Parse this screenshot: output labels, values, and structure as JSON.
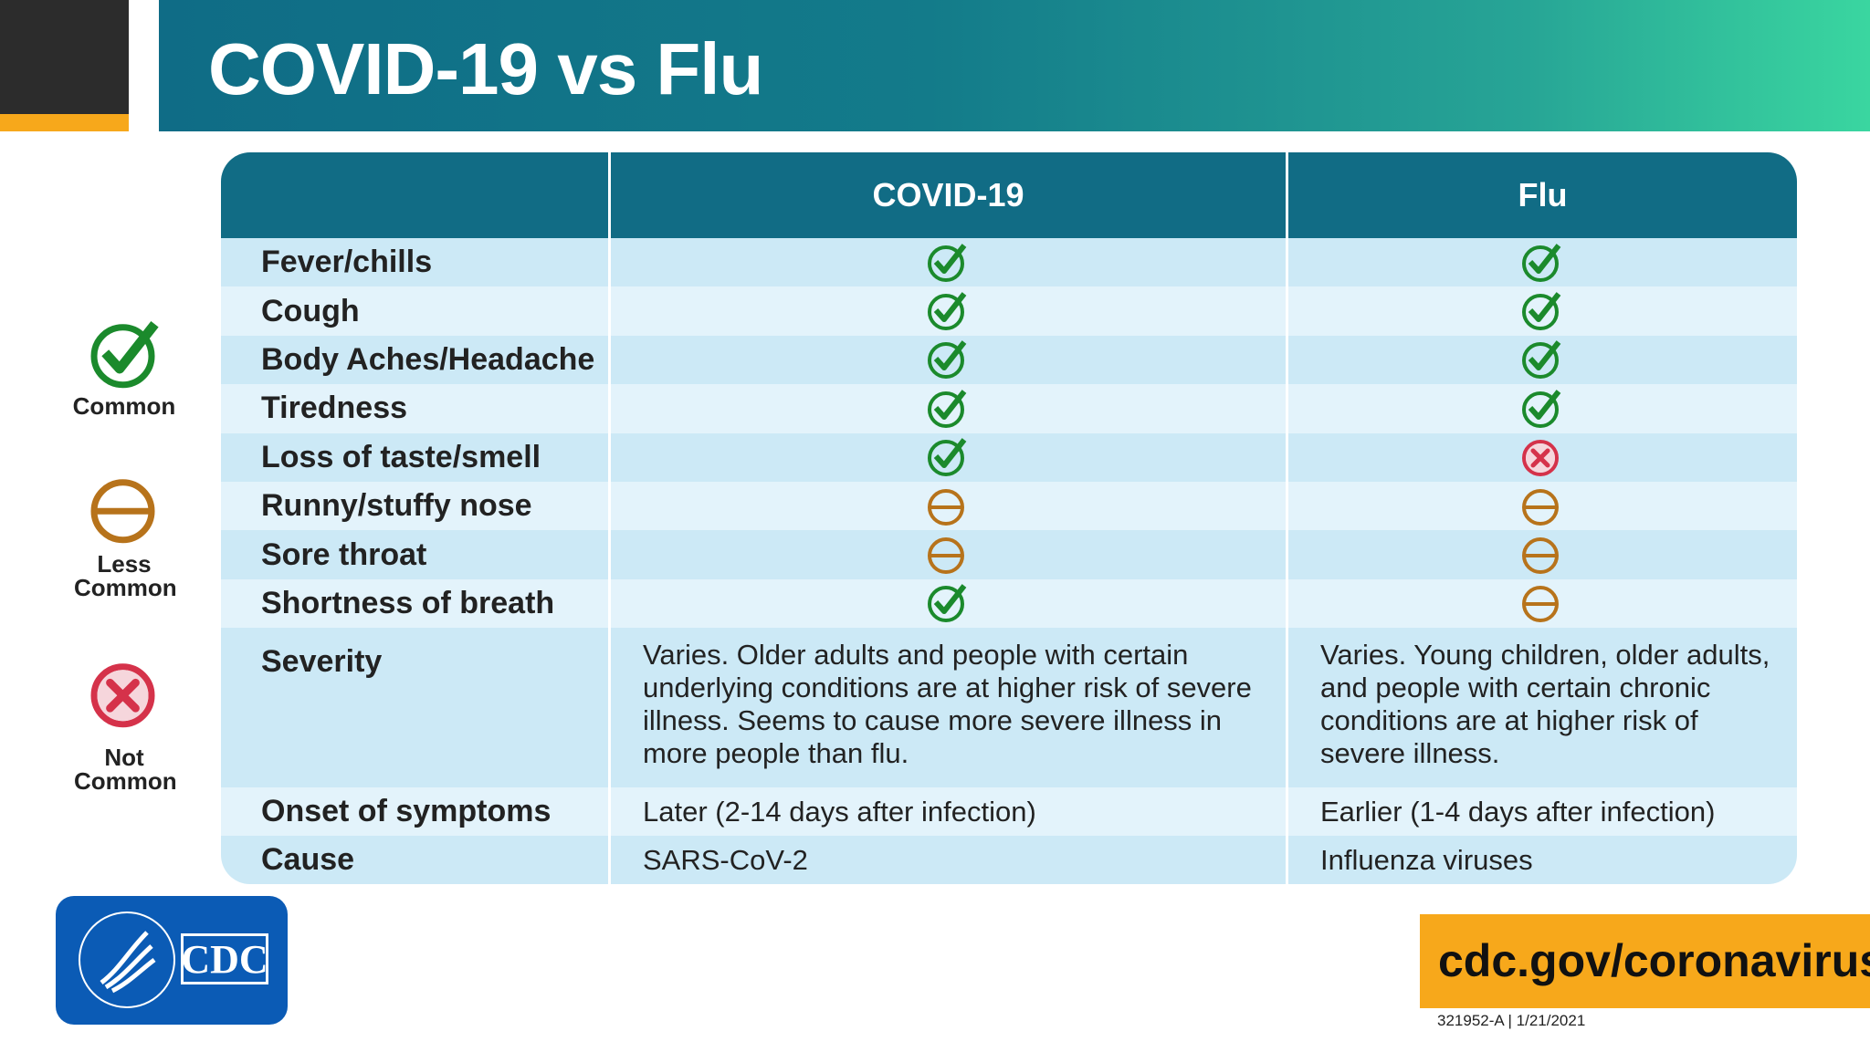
{
  "header": {
    "title": "COVID-19 vs Flu"
  },
  "legend": [
    {
      "label": "Common"
    },
    {
      "label": "Less Common"
    },
    {
      "label": "Not Common"
    }
  ],
  "table": {
    "columns": [
      "COVID-19",
      "Flu"
    ],
    "rows": [
      {
        "label": "Fever/chills",
        "covid": "Common",
        "flu": "Common"
      },
      {
        "label": "Cough",
        "covid": "Common",
        "flu": "Common"
      },
      {
        "label": "Body Aches/Headache",
        "covid": "Common",
        "flu": "Common"
      },
      {
        "label": "Tiredness",
        "covid": "Common",
        "flu": "Common"
      },
      {
        "label": "Loss of taste/smell",
        "covid": "Common",
        "flu": "Not Common"
      },
      {
        "label": "Runny/stuffy nose",
        "covid": "Less Common",
        "flu": "Less Common"
      },
      {
        "label": "Sore throat",
        "covid": "Less Common",
        "flu": "Less Common"
      },
      {
        "label": "Shortness of breath",
        "covid": "Common",
        "flu": "Less Common"
      },
      {
        "label": "Severity",
        "covid": "Varies. Older adults and people with certain underlying conditions are at higher risk of severe illness. Seems to cause more severe illness in more people than flu.",
        "flu": "Varies. Young children, older adults, and people with certain chronic conditions are at higher risk of severe illness."
      },
      {
        "label": "Onset of symptoms",
        "covid": "Later (2-14 days after infection)",
        "flu": "Earlier (1-4 days after infection)"
      },
      {
        "label": "Cause",
        "covid": "SARS-CoV-2",
        "flu": "Influenza viruses"
      }
    ]
  },
  "footer": {
    "logo": "CDC",
    "url": "cdc.gov/coronavirus",
    "code": "321952-A | 1/21/2021"
  }
}
